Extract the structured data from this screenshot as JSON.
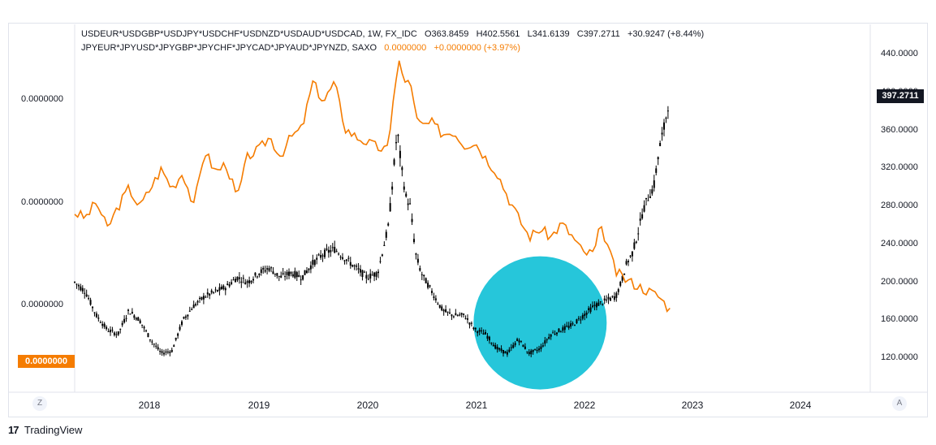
{
  "legend": {
    "symbol1": "USDEUR*USDGBP*USDJPY*USDCHF*USDNZD*USDAUD*USDCAD, 1W, FX_IDC",
    "open": "O363.8459",
    "high": "H402.5561",
    "low": "L341.6139",
    "close": "C397.2711",
    "change": "+30.9247 (+8.44%)",
    "symbol2": "JPYEUR*JPYUSD*JPYGBP*JPYCHF*JPYCAD*JPYAUD*JPYNZD, SAXO",
    "value2": "0.0000000",
    "change2": "+0.0000000 (+3.97%)"
  },
  "left_axis": [
    "0.0000000",
    "0.0000000",
    "0.0000000"
  ],
  "orange_tag": "0.0000000",
  "price_tag": "397.2711",
  "right_axis": [
    "440.0000",
    "400.0000",
    "360.0000",
    "320.0000",
    "280.0000",
    "240.0000",
    "200.0000",
    "160.0000",
    "120.0000"
  ],
  "x_axis": [
    "2018",
    "2019",
    "2020",
    "2021",
    "2022",
    "2023",
    "2024"
  ],
  "buttons": {
    "zoom": "Z",
    "auto": "A"
  },
  "brand": {
    "logo": "17",
    "name": "TradingView"
  },
  "colors": {
    "candles": "#000000",
    "orange": "#f57c00",
    "highlight": "#26c6da"
  },
  "chart_data": {
    "type": "line",
    "right_scale": {
      "ylim": [
        100,
        450
      ],
      "ticks": [
        120,
        160,
        200,
        240,
        280,
        320,
        360,
        400,
        440
      ]
    },
    "series": [
      {
        "name": "USDEUR*USDGBP*USDJPY*USDCHF*USDNZD*USDAUD*USDCAD",
        "style": "candles",
        "x": [
          2017.2,
          2017.3,
          2017.4,
          2017.5,
          2017.6,
          2017.7,
          2017.8,
          2017.9,
          2018.0,
          2018.1,
          2018.2,
          2018.3,
          2018.4,
          2018.5,
          2018.6,
          2018.7,
          2018.8,
          2018.9,
          2019.0,
          2019.1,
          2019.2,
          2019.3,
          2019.4,
          2019.5,
          2019.6,
          2019.7,
          2019.8,
          2019.9,
          2020.0,
          2020.1,
          2020.18,
          2020.22,
          2020.26,
          2020.3,
          2020.35,
          2020.4,
          2020.5,
          2020.6,
          2020.7,
          2020.8,
          2020.9,
          2021.0,
          2021.1,
          2021.2,
          2021.3,
          2021.4,
          2021.5,
          2021.6,
          2021.7,
          2021.8,
          2021.9,
          2022.0,
          2022.1,
          2022.2,
          2022.25,
          2022.3,
          2022.35,
          2022.4,
          2022.45,
          2022.5,
          2022.55,
          2022.6,
          2022.65,
          2022.7
        ],
        "y": [
          200,
          190,
          165,
          150,
          145,
          170,
          160,
          140,
          125,
          128,
          160,
          175,
          185,
          190,
          195,
          205,
          200,
          210,
          215,
          205,
          210,
          205,
          220,
          230,
          235,
          225,
          215,
          205,
          210,
          260,
          360,
          320,
          290,
          280,
          230,
          210,
          190,
          170,
          165,
          165,
          150,
          145,
          130,
          125,
          140,
          125,
          130,
          145,
          150,
          155,
          165,
          175,
          180,
          185,
          200,
          220,
          230,
          250,
          275,
          290,
          300,
          340,
          365,
          400
        ]
      },
      {
        "name": "JPYEUR*JPYUSD*JPYGBP*JPYCHF*JPYCAD*JPYAUD*JPYNZD",
        "style": "line",
        "x": [
          2017.2,
          2017.3,
          2017.4,
          2017.5,
          2017.6,
          2017.7,
          2017.8,
          2017.9,
          2018.0,
          2018.1,
          2018.2,
          2018.3,
          2018.4,
          2018.5,
          2018.6,
          2018.7,
          2018.8,
          2018.9,
          2019.0,
          2019.1,
          2019.2,
          2019.3,
          2019.4,
          2019.5,
          2019.6,
          2019.7,
          2019.8,
          2019.9,
          2020.0,
          2020.1,
          2020.15,
          2020.2,
          2020.25,
          2020.3,
          2020.35,
          2020.4,
          2020.5,
          2020.6,
          2020.7,
          2020.8,
          2020.9,
          2021.0,
          2021.1,
          2021.2,
          2021.3,
          2021.4,
          2021.5,
          2021.6,
          2021.7,
          2021.8,
          2021.9,
          2022.0,
          2022.05,
          2022.1,
          2022.15,
          2022.2,
          2022.3,
          2022.4,
          2022.5,
          2022.6,
          2022.7
        ],
        "y": [
          0.64,
          0.62,
          0.68,
          0.58,
          0.66,
          0.73,
          0.66,
          0.73,
          0.8,
          0.73,
          0.79,
          0.66,
          0.87,
          0.79,
          0.82,
          0.69,
          0.85,
          0.87,
          0.92,
          0.85,
          0.92,
          0.95,
          1.12,
          1.05,
          1.12,
          0.95,
          0.92,
          0.9,
          0.88,
          0.87,
          1.1,
          1.2,
          1.11,
          1.14,
          0.99,
          0.96,
          0.97,
          0.93,
          0.94,
          0.89,
          0.9,
          0.84,
          0.79,
          0.7,
          0.62,
          0.55,
          0.58,
          0.55,
          0.6,
          0.55,
          0.49,
          0.49,
          0.58,
          0.55,
          0.48,
          0.42,
          0.39,
          0.37,
          0.35,
          0.33,
          0.28
        ]
      }
    ],
    "annotations": [
      {
        "type": "circle",
        "color": "#26c6da",
        "x_center": 2021.5,
        "y_center": 170
      }
    ]
  }
}
